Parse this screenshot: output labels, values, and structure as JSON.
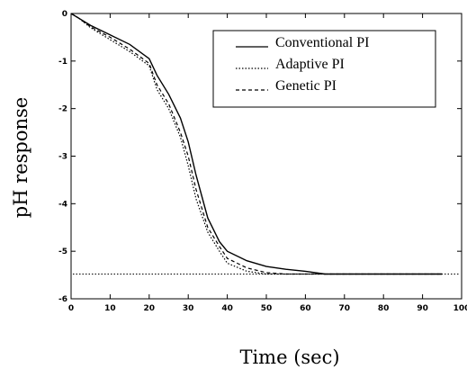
{
  "chart_data": {
    "type": "line",
    "title": "",
    "xlabel": "Time (sec)",
    "ylabel": "pH response",
    "xlim": [
      0,
      100
    ],
    "ylim": [
      -6,
      0
    ],
    "xticks": [
      "0",
      "10",
      "20",
      "30",
      "40",
      "50",
      "60",
      "70",
      "80",
      "90",
      "100"
    ],
    "yticks": [
      "0",
      "-1",
      "-2",
      "-3",
      "-4",
      "-5",
      "-6"
    ],
    "grid": false,
    "legend_position": "top-right",
    "series": [
      {
        "name": "Conventional PI",
        "style": "solid",
        "x": [
          0,
          2,
          5,
          10,
          15,
          20,
          22,
          25,
          28,
          30,
          32,
          35,
          38,
          40,
          45,
          50,
          55,
          60,
          65,
          70,
          80,
          90,
          95
        ],
        "y": [
          0,
          -0.1,
          -0.25,
          -0.45,
          -0.65,
          -0.95,
          -1.3,
          -1.7,
          -2.2,
          -2.7,
          -3.4,
          -4.3,
          -4.8,
          -5.0,
          -5.2,
          -5.32,
          -5.38,
          -5.42,
          -5.48,
          -5.48,
          -5.48,
          -5.48,
          -5.48
        ]
      },
      {
        "name": "Adaptive PI",
        "style": "dotted",
        "x": [
          0,
          2,
          5,
          10,
          15,
          20,
          22,
          25,
          28,
          30,
          32,
          35,
          38,
          40,
          45,
          50,
          55,
          60,
          65,
          70,
          80,
          90,
          95
        ],
        "y": [
          0,
          -0.1,
          -0.3,
          -0.55,
          -0.8,
          -1.1,
          -1.6,
          -2.0,
          -2.6,
          -3.2,
          -3.9,
          -4.6,
          -5.0,
          -5.25,
          -5.42,
          -5.48,
          -5.48,
          -5.48,
          -5.48,
          -5.48,
          -5.48,
          -5.48,
          -5.48
        ]
      },
      {
        "name": "Genetic PI",
        "style": "dashed",
        "x": [
          0,
          2,
          5,
          10,
          15,
          20,
          22,
          25,
          28,
          30,
          32,
          35,
          38,
          40,
          45,
          50,
          55,
          60,
          65,
          70,
          80,
          90,
          95
        ],
        "y": [
          0,
          -0.1,
          -0.28,
          -0.5,
          -0.75,
          -1.05,
          -1.5,
          -1.9,
          -2.5,
          -3.0,
          -3.7,
          -4.5,
          -4.9,
          -5.15,
          -5.35,
          -5.45,
          -5.48,
          -5.48,
          -5.48,
          -5.48,
          -5.48,
          -5.48,
          -5.48
        ]
      }
    ],
    "reference_line": {
      "y": -5.48,
      "style": "dotted"
    },
    "colors": {
      "lines": "#000000",
      "background": "#ffffff"
    }
  }
}
